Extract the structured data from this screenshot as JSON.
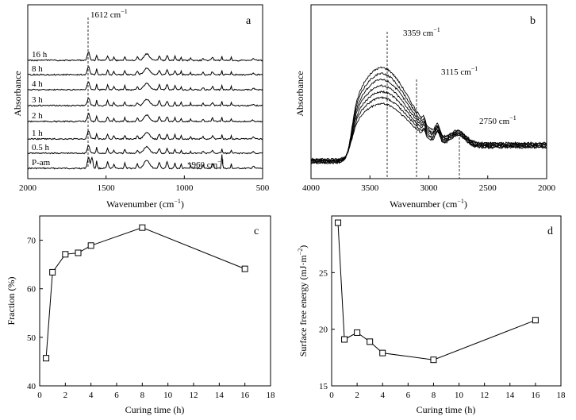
{
  "chart_data": [
    {
      "panel": "a",
      "type": "line",
      "xlabel": "Wavenumber (cm",
      "xlabel_sup": "−1",
      "xlabel_end": ")",
      "ylabel": "Absorbance",
      "xlim": [
        2000,
        500
      ],
      "xticks": [
        "2000",
        "1500",
        "1000",
        "500"
      ],
      "series": [
        {
          "name": "P-am"
        },
        {
          "name": "0.5 h"
        },
        {
          "name": "1 h"
        },
        {
          "name": "2 h"
        },
        {
          "name": "3 h"
        },
        {
          "name": "4 h"
        },
        {
          "name": "8 h"
        },
        {
          "name": "16 h"
        }
      ],
      "annotations": [
        {
          "text": "1612 cm",
          "sup": "−1",
          "x": 1612
        },
        {
          "text": "*960 cm",
          "sup": "−1",
          "x": 960
        }
      ]
    },
    {
      "panel": "b",
      "type": "line",
      "xlabel": "Wavenumber (cm",
      "xlabel_sup": "−1",
      "xlabel_end": ")",
      "ylabel": "Absorbance",
      "xlim": [
        4000,
        2000
      ],
      "xticks": [
        "4000",
        "3500",
        "3000",
        "2500",
        "2000"
      ],
      "annotations": [
        {
          "text": "3359 cm",
          "sup": "−1",
          "x": 3359
        },
        {
          "text": "3115 cm",
          "sup": "−1",
          "x": 3115
        },
        {
          "text": "2750 cm",
          "sup": "−1",
          "x": 2750
        }
      ]
    },
    {
      "panel": "c",
      "type": "line",
      "xlabel": "Curing time (h)",
      "ylabel": "Fraction (%)",
      "xlim": [
        0,
        18
      ],
      "ylim": [
        40,
        75
      ],
      "xticks": [
        "0",
        "2",
        "4",
        "6",
        "8",
        "10",
        "12",
        "14",
        "16",
        "18"
      ],
      "yticks": [
        "40",
        "50",
        "60",
        "70"
      ],
      "x": [
        0.5,
        1,
        2,
        3,
        4,
        8,
        16
      ],
      "y": [
        45.7,
        63.4,
        67.1,
        67.4,
        68.9,
        72.6,
        64.1
      ]
    },
    {
      "panel": "d",
      "type": "line",
      "xlabel": "Curing time (h)",
      "ylabel": "Surface free energy (mJ·m",
      "ylabel_sup": "−2",
      "ylabel_end": ")",
      "xlim": [
        0,
        18
      ],
      "ylim": [
        15,
        30
      ],
      "xticks": [
        "0",
        "2",
        "4",
        "6",
        "8",
        "10",
        "12",
        "14",
        "16",
        "18"
      ],
      "yticks": [
        "15",
        "20",
        "25"
      ],
      "x": [
        0.5,
        1,
        2,
        3,
        4,
        8,
        16
      ],
      "y": [
        29.4,
        19.1,
        19.7,
        18.9,
        17.9,
        17.3,
        20.8
      ]
    }
  ]
}
